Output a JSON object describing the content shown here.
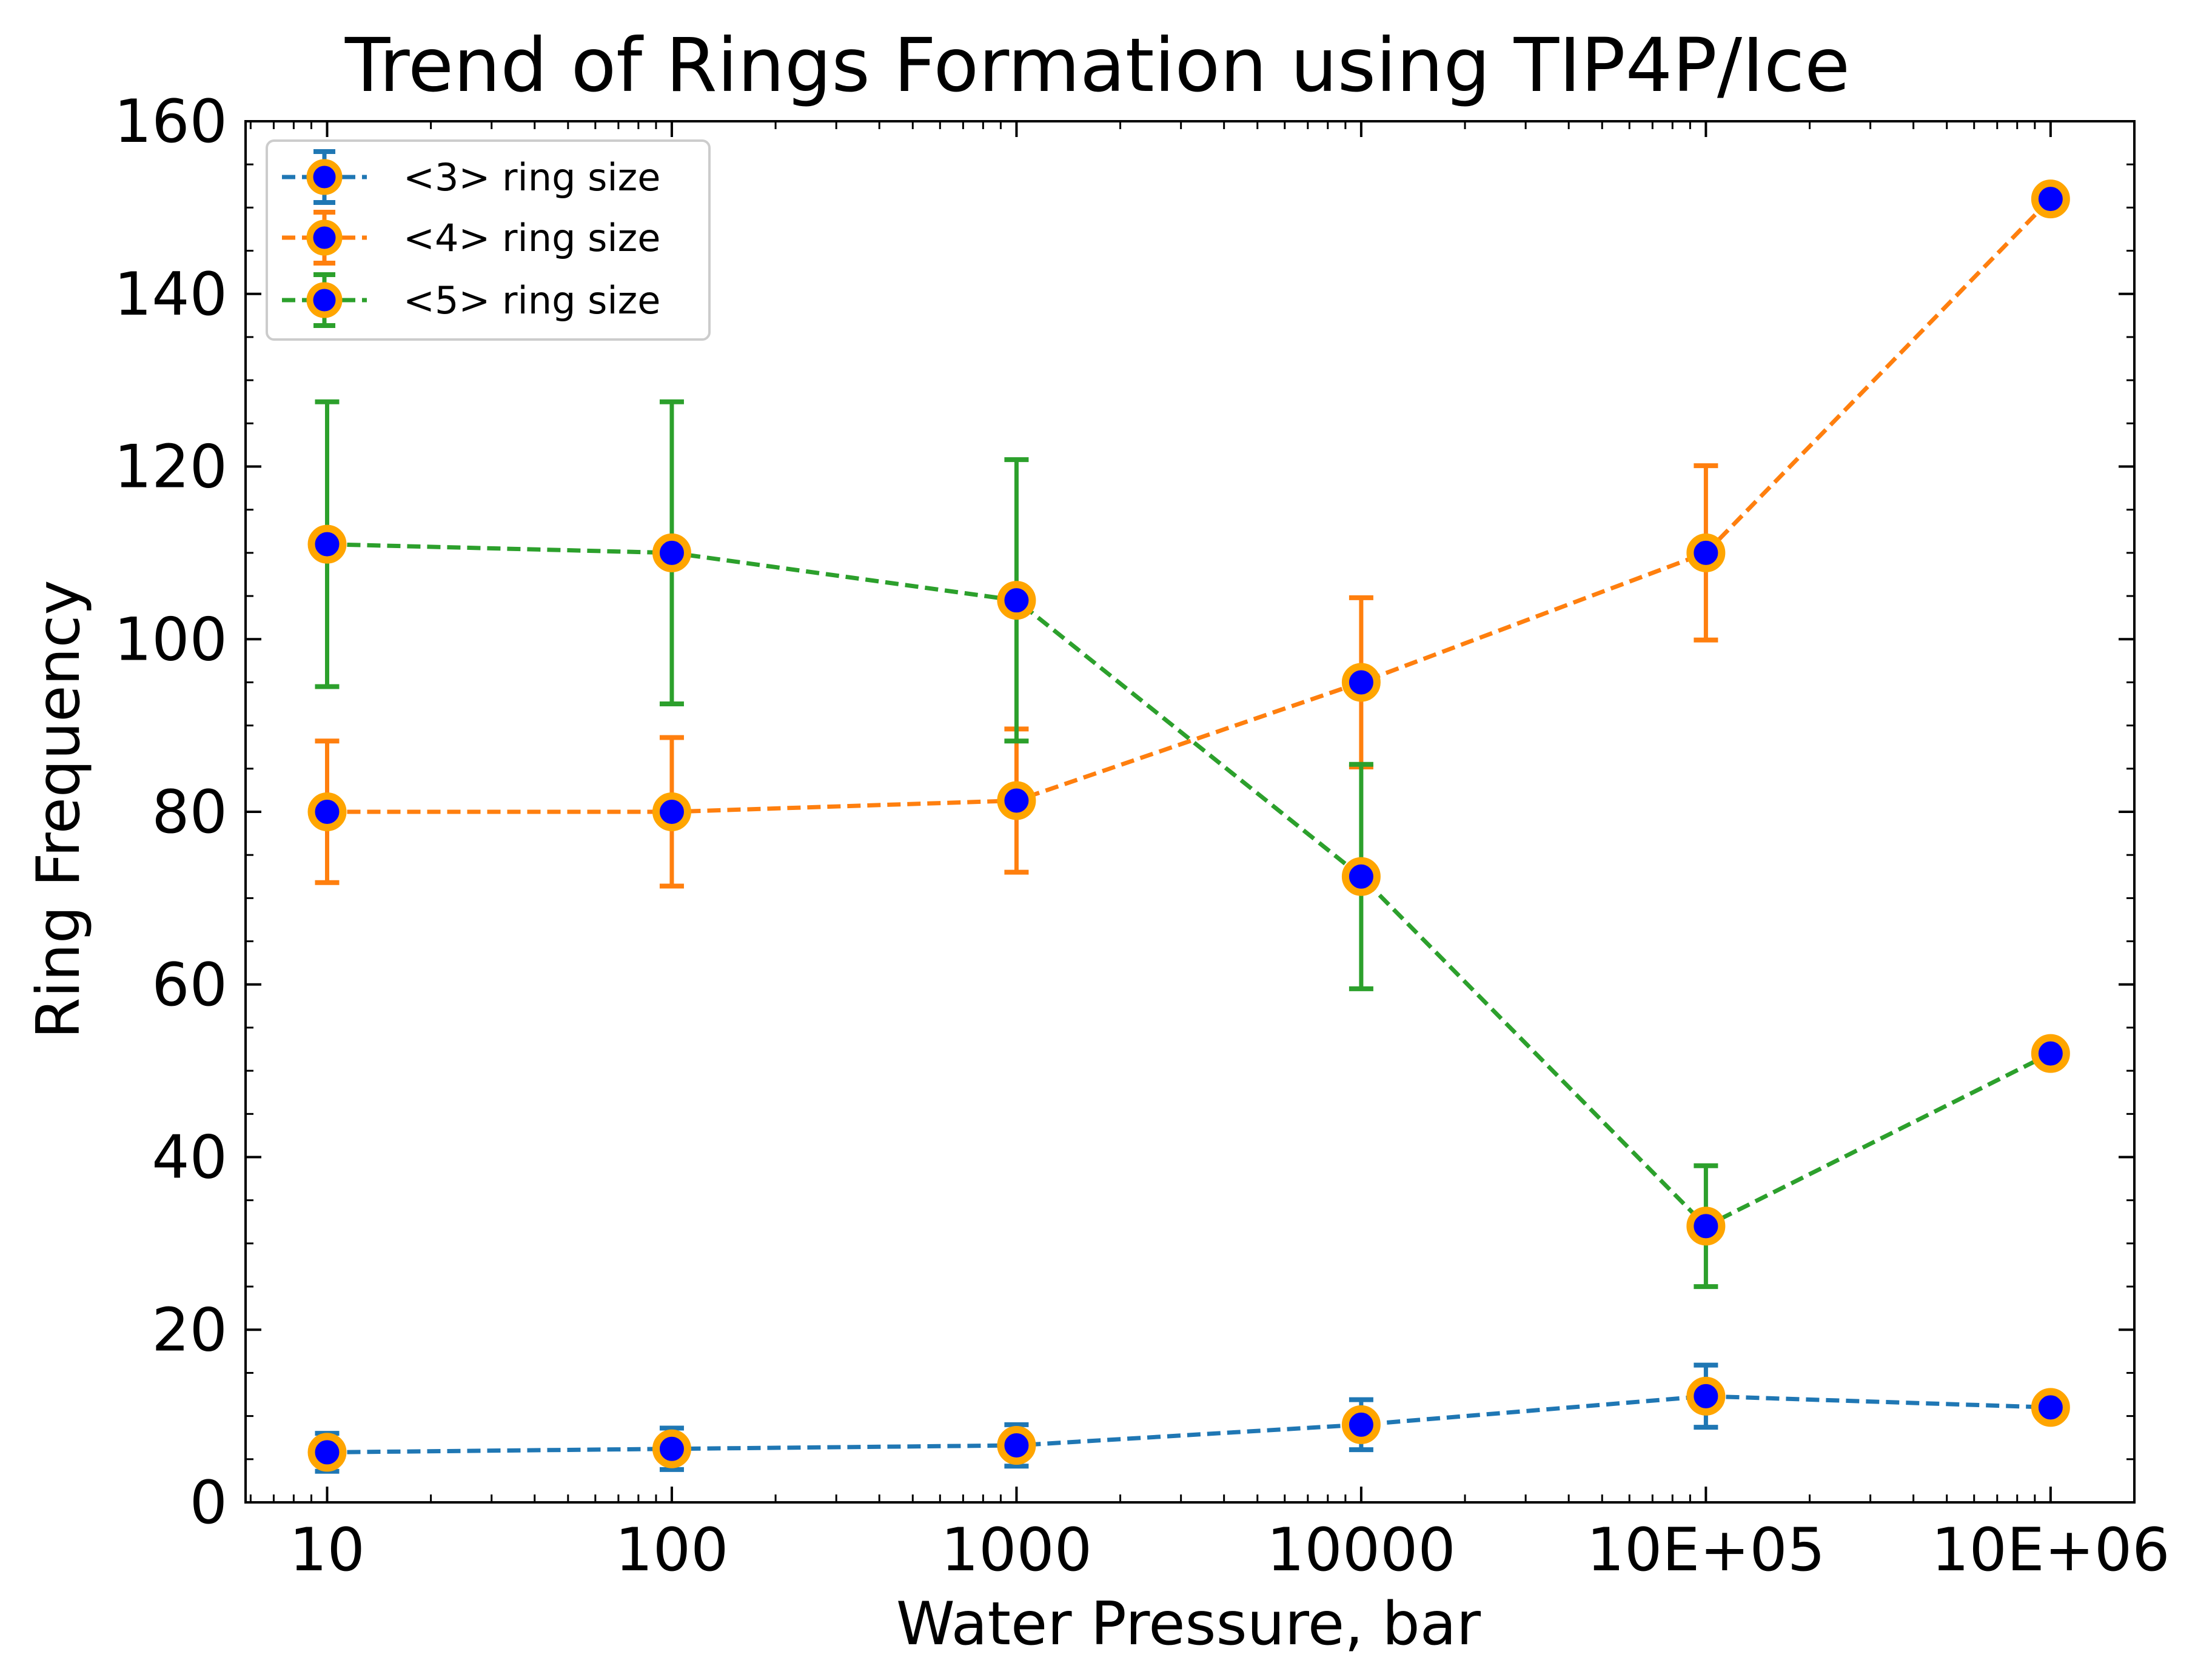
{
  "chart_data": {
    "type": "line",
    "title": "Trend of Rings Formation using TIP4P/Ice",
    "xlabel": "Water Pressure, bar",
    "ylabel": "Ring Frequency",
    "xscale": "log",
    "xlim": [
      5.8,
      1750000
    ],
    "ylim": [
      0,
      160
    ],
    "x": [
      10,
      100,
      1000,
      10000,
      100000,
      1000000
    ],
    "x_tick_labels": [
      "10",
      "100",
      "1000",
      "10000",
      "10E+05",
      "10E+06"
    ],
    "y_ticks": [
      0,
      20,
      40,
      60,
      80,
      100,
      120,
      140,
      160
    ],
    "y_tick_labels": [
      "0",
      "20",
      "40",
      "60",
      "80",
      "100",
      "120",
      "140",
      "160"
    ],
    "grid": false,
    "legend_position": "top-left",
    "marker": {
      "face_color": "#0000ff",
      "edge_color": "#ffa500"
    },
    "series": [
      {
        "name": "<3> ring size",
        "color": "#1f77b4",
        "values": [
          5.8,
          6.2,
          6.6,
          9.0,
          12.3,
          11.0
        ],
        "errors": [
          2.2,
          2.4,
          2.4,
          2.9,
          3.6,
          0
        ]
      },
      {
        "name": "<4> ring size",
        "color": "#ff7f0e",
        "values": [
          80.0,
          80.0,
          81.3,
          95.0,
          110.0,
          151.0
        ],
        "errors": [
          8.2,
          8.6,
          8.3,
          9.8,
          10.1,
          0
        ]
      },
      {
        "name": "<5> ring size",
        "color": "#2ca02c",
        "values": [
          111.0,
          110.0,
          104.5,
          72.5,
          32.0,
          52.0
        ],
        "errors": [
          16.5,
          17.5,
          16.3,
          13.0,
          7.0,
          0
        ]
      }
    ]
  }
}
